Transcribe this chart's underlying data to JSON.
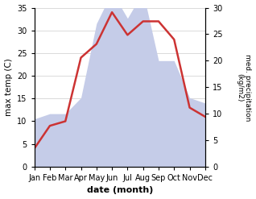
{
  "months": [
    "Jan",
    "Feb",
    "Mar",
    "Apr",
    "May",
    "Jun",
    "Jul",
    "Aug",
    "Sep",
    "Oct",
    "Nov",
    "Dec"
  ],
  "temperature": [
    4,
    9,
    10,
    24,
    27,
    34,
    29,
    32,
    32,
    28,
    13,
    11
  ],
  "precipitation": [
    9,
    10,
    10,
    13,
    27,
    33,
    28,
    33,
    20,
    20,
    13,
    12
  ],
  "temp_color": "#cc3333",
  "precip_fill_color": "#c5cce8",
  "precip_edge_color": "#c5cce8",
  "temp_ylim": [
    0,
    35
  ],
  "precip_ylim": [
    0,
    30
  ],
  "xlabel": "date (month)",
  "ylabel_left": "max temp (C)",
  "ylabel_right": "med. precipitation\n(kg/m2)",
  "yticks_left": [
    0,
    5,
    10,
    15,
    20,
    25,
    30,
    35
  ],
  "yticks_right": [
    0,
    5,
    10,
    15,
    20,
    25,
    30
  ],
  "background_color": "#ffffff",
  "grid_color": "#cccccc"
}
